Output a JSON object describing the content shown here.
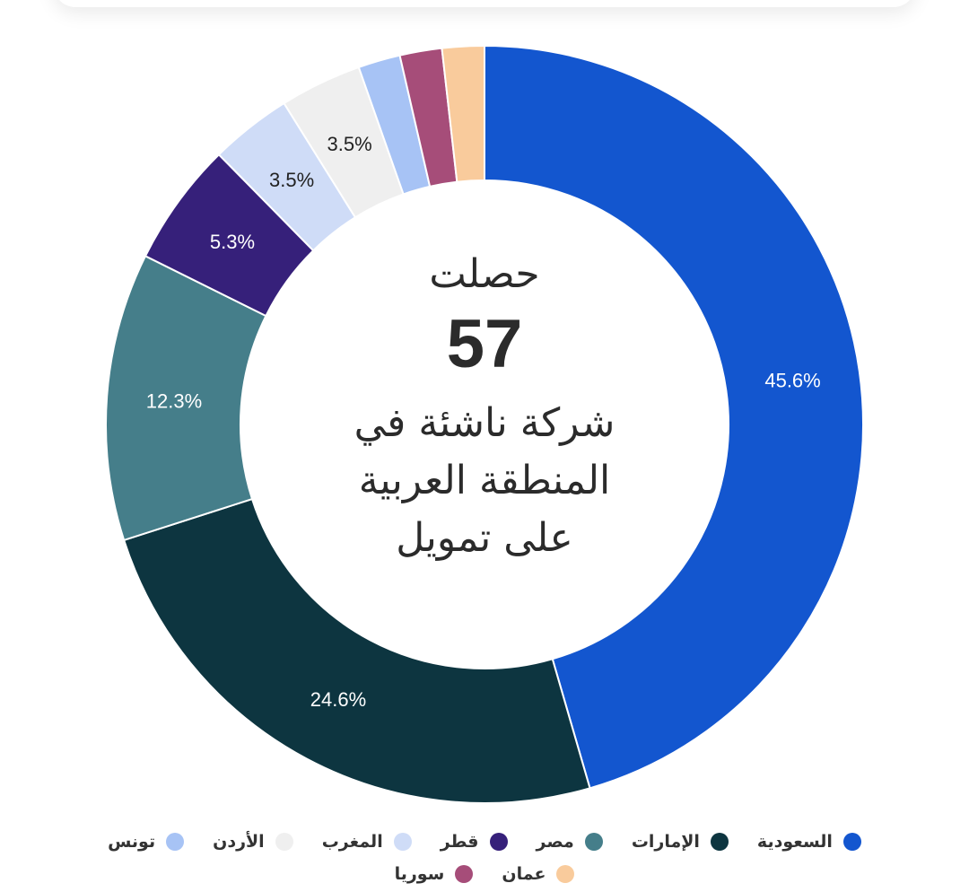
{
  "chart_data": {
    "type": "pie",
    "donut": true,
    "center_text": {
      "top": "حصلت",
      "number": "57",
      "bottom_lines": [
        "شركة ناشئة في",
        "المنطقة العربية",
        "على تمويل"
      ]
    },
    "categories": [
      "السعودية",
      "الإمارات",
      "مصر",
      "قطر",
      "المغرب",
      "الأردن",
      "تونس",
      "سوريا",
      "عمان"
    ],
    "values": [
      45.6,
      24.6,
      12.3,
      5.3,
      3.5,
      3.5,
      1.8,
      1.8,
      1.8
    ],
    "data_labels": [
      "45.6%",
      "24.6%",
      "12.3%",
      "5.3%",
      "3.5%",
      "3.5%",
      "",
      "",
      ""
    ],
    "colors": [
      "#1356cf",
      "#0d3540",
      "#457e8a",
      "#36207a",
      "#cfdcf7",
      "#efefef",
      "#a7c3f5",
      "#a64d79",
      "#f9cb9c"
    ],
    "label_colors": [
      "#ffffff",
      "#ffffff",
      "#ffffff",
      "#ffffff",
      "#222222",
      "#222222",
      "#222222",
      "#222222",
      "#222222"
    ],
    "legend": {
      "position": "bottom",
      "rows": [
        [
          {
            "label": "السعودية",
            "index": 0
          },
          {
            "label": "الإمارات",
            "index": 1
          },
          {
            "label": "مصر",
            "index": 2
          },
          {
            "label": "قطر",
            "index": 3
          },
          {
            "label": "المغرب",
            "index": 4
          },
          {
            "label": "الأردن",
            "index": 5
          },
          {
            "label": "تونس",
            "index": 6
          }
        ],
        [
          {
            "label": "عمان",
            "index": 8
          },
          {
            "label": "سوريا",
            "index": 7
          }
        ]
      ]
    }
  }
}
